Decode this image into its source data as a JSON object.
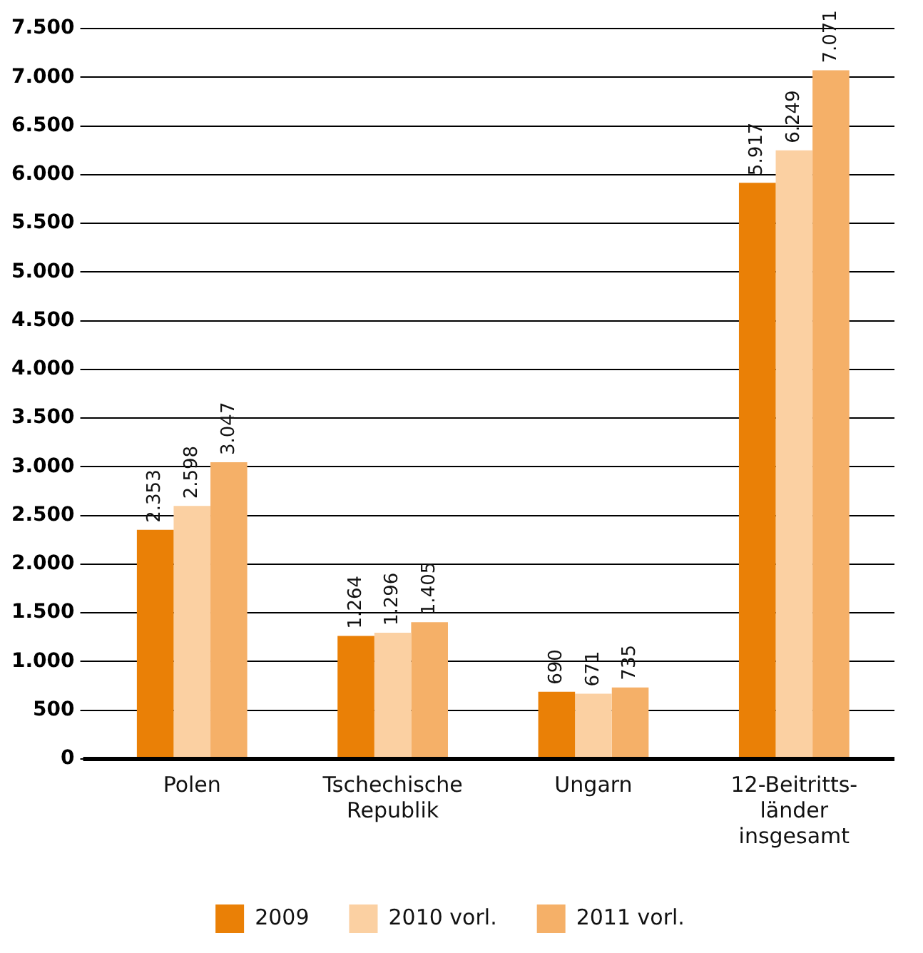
{
  "chart_data": {
    "type": "bar",
    "categories": [
      "Polen",
      "Tschechische\nRepublik",
      "Ungarn",
      "12-Beitritts-\nländer\ninsgesamt"
    ],
    "series": [
      {
        "name": "2009",
        "color": "#ea8006",
        "values": [
          2353,
          1264,
          690,
          5917
        ],
        "value_labels": [
          "2.353",
          "1.264",
          "690",
          "5.917"
        ]
      },
      {
        "name": "2010 vorl.",
        "color": "#fbd0a2",
        "values": [
          2598,
          1296,
          671,
          6249
        ],
        "value_labels": [
          "2.598",
          "1.296",
          "671",
          "6.249"
        ]
      },
      {
        "name": "2011 vorl.",
        "color": "#f5b068",
        "values": [
          3047,
          1405,
          735,
          7071
        ],
        "value_labels": [
          "3.047",
          "1.405",
          "735",
          "7.071"
        ]
      }
    ],
    "ylim": [
      0,
      7500
    ],
    "yticks": [
      {
        "value": 0,
        "label": "0"
      },
      {
        "value": 500,
        "label": "500"
      },
      {
        "value": 1000,
        "label": "1.000"
      },
      {
        "value": 1500,
        "label": "1.500"
      },
      {
        "value": 2000,
        "label": "2.000"
      },
      {
        "value": 2500,
        "label": "2.500"
      },
      {
        "value": 3000,
        "label": "3.000"
      },
      {
        "value": 3500,
        "label": "3.500"
      },
      {
        "value": 4000,
        "label": "4.000"
      },
      {
        "value": 4500,
        "label": "4.500"
      },
      {
        "value": 5000,
        "label": "5.000"
      },
      {
        "value": 5500,
        "label": "5.500"
      },
      {
        "value": 6000,
        "label": "6.000"
      },
      {
        "value": 6500,
        "label": "6.500"
      },
      {
        "value": 7000,
        "label": "7.000"
      },
      {
        "value": 7500,
        "label": "7.500"
      }
    ],
    "grid": "y",
    "legend": "bottom"
  }
}
